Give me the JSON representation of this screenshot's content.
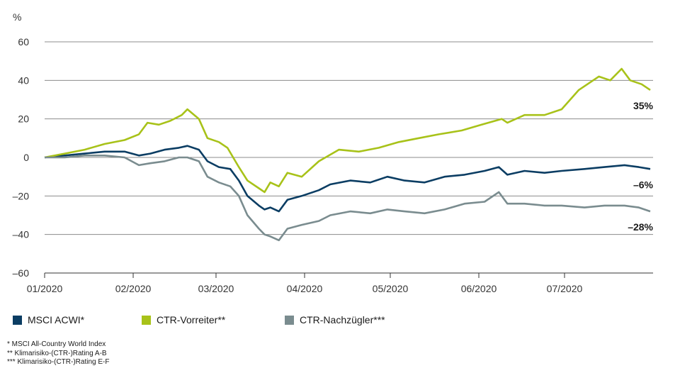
{
  "chart_data": {
    "type": "line",
    "unit_label": "%",
    "ylim": [
      -60,
      60
    ],
    "y_ticks": [
      60,
      40,
      20,
      0,
      -20,
      -40,
      -60
    ],
    "y_tick_labels": [
      "60",
      "40",
      "20",
      "0",
      "–20",
      "–40",
      "–60"
    ],
    "x_range": [
      "2020-01-01",
      "2020-08-01"
    ],
    "x_ticks": [
      {
        "date": "2020-01-01",
        "label": "01/2020"
      },
      {
        "date": "2020-02-01",
        "label": "02/2020"
      },
      {
        "date": "2020-03-01",
        "label": "03/2020"
      },
      {
        "date": "2020-04-01",
        "label": "04/2020"
      },
      {
        "date": "2020-05-01",
        "label": "05/2020"
      },
      {
        "date": "2020-06-01",
        "label": "06/2020"
      },
      {
        "date": "2020-07-01",
        "label": "07/2020"
      }
    ],
    "grid": true,
    "legend_position": "bottom-left",
    "series": [
      {
        "name": "MSCI ACWI*",
        "color": "#0b3d63",
        "end_label": "–6%",
        "points": [
          [
            "2020-01-01",
            0
          ],
          [
            "2020-01-08",
            1
          ],
          [
            "2020-01-15",
            2
          ],
          [
            "2020-01-22",
            3
          ],
          [
            "2020-01-29",
            3
          ],
          [
            "2020-02-03",
            1
          ],
          [
            "2020-02-07",
            2
          ],
          [
            "2020-02-12",
            4
          ],
          [
            "2020-02-17",
            5
          ],
          [
            "2020-02-20",
            6
          ],
          [
            "2020-02-24",
            4
          ],
          [
            "2020-02-27",
            -2
          ],
          [
            "2020-03-02",
            -5
          ],
          [
            "2020-03-06",
            -6
          ],
          [
            "2020-03-09",
            -12
          ],
          [
            "2020-03-12",
            -20
          ],
          [
            "2020-03-16",
            -25
          ],
          [
            "2020-03-18",
            -27
          ],
          [
            "2020-03-20",
            -26
          ],
          [
            "2020-03-23",
            -28
          ],
          [
            "2020-03-26",
            -22
          ],
          [
            "2020-03-31",
            -20
          ],
          [
            "2020-04-06",
            -17
          ],
          [
            "2020-04-10",
            -14
          ],
          [
            "2020-04-17",
            -12
          ],
          [
            "2020-04-24",
            -13
          ],
          [
            "2020-04-30",
            -10
          ],
          [
            "2020-05-06",
            -12
          ],
          [
            "2020-05-13",
            -13
          ],
          [
            "2020-05-20",
            -10
          ],
          [
            "2020-05-27",
            -9
          ],
          [
            "2020-06-03",
            -7
          ],
          [
            "2020-06-08",
            -5
          ],
          [
            "2020-06-11",
            -9
          ],
          [
            "2020-06-17",
            -7
          ],
          [
            "2020-06-24",
            -8
          ],
          [
            "2020-06-30",
            -7
          ],
          [
            "2020-07-08",
            -6
          ],
          [
            "2020-07-15",
            -5
          ],
          [
            "2020-07-22",
            -4
          ],
          [
            "2020-07-27",
            -5
          ],
          [
            "2020-07-31",
            -6
          ]
        ]
      },
      {
        "name": "CTR-Vorreiter**",
        "color": "#a8c219",
        "end_label": "35%",
        "points": [
          [
            "2020-01-01",
            0
          ],
          [
            "2020-01-08",
            2
          ],
          [
            "2020-01-15",
            4
          ],
          [
            "2020-01-22",
            7
          ],
          [
            "2020-01-29",
            9
          ],
          [
            "2020-02-03",
            12
          ],
          [
            "2020-02-06",
            18
          ],
          [
            "2020-02-10",
            17
          ],
          [
            "2020-02-14",
            19
          ],
          [
            "2020-02-18",
            22
          ],
          [
            "2020-02-20",
            25
          ],
          [
            "2020-02-24",
            20
          ],
          [
            "2020-02-27",
            10
          ],
          [
            "2020-03-02",
            8
          ],
          [
            "2020-03-05",
            5
          ],
          [
            "2020-03-09",
            -5
          ],
          [
            "2020-03-12",
            -12
          ],
          [
            "2020-03-16",
            -16
          ],
          [
            "2020-03-18",
            -18
          ],
          [
            "2020-03-20",
            -13
          ],
          [
            "2020-03-23",
            -15
          ],
          [
            "2020-03-26",
            -8
          ],
          [
            "2020-03-31",
            -10
          ],
          [
            "2020-04-06",
            -2
          ],
          [
            "2020-04-13",
            4
          ],
          [
            "2020-04-20",
            3
          ],
          [
            "2020-04-27",
            5
          ],
          [
            "2020-05-04",
            8
          ],
          [
            "2020-05-11",
            10
          ],
          [
            "2020-05-18",
            12
          ],
          [
            "2020-05-26",
            14
          ],
          [
            "2020-06-02",
            17
          ],
          [
            "2020-06-09",
            20
          ],
          [
            "2020-06-11",
            18
          ],
          [
            "2020-06-17",
            22
          ],
          [
            "2020-06-24",
            22
          ],
          [
            "2020-06-30",
            25
          ],
          [
            "2020-07-06",
            35
          ],
          [
            "2020-07-13",
            42
          ],
          [
            "2020-07-17",
            40
          ],
          [
            "2020-07-21",
            46
          ],
          [
            "2020-07-24",
            40
          ],
          [
            "2020-07-28",
            38
          ],
          [
            "2020-07-31",
            35
          ]
        ]
      },
      {
        "name": "CTR-Nachzügler***",
        "color": "#7a8c8f",
        "end_label": "–28%",
        "points": [
          [
            "2020-01-01",
            0
          ],
          [
            "2020-01-08",
            0
          ],
          [
            "2020-01-15",
            1
          ],
          [
            "2020-01-22",
            1
          ],
          [
            "2020-01-29",
            0
          ],
          [
            "2020-02-03",
            -4
          ],
          [
            "2020-02-07",
            -3
          ],
          [
            "2020-02-12",
            -2
          ],
          [
            "2020-02-17",
            0
          ],
          [
            "2020-02-20",
            0
          ],
          [
            "2020-02-24",
            -2
          ],
          [
            "2020-02-27",
            -10
          ],
          [
            "2020-03-02",
            -13
          ],
          [
            "2020-03-06",
            -15
          ],
          [
            "2020-03-09",
            -20
          ],
          [
            "2020-03-12",
            -30
          ],
          [
            "2020-03-16",
            -37
          ],
          [
            "2020-03-18",
            -40
          ],
          [
            "2020-03-20",
            -41
          ],
          [
            "2020-03-23",
            -43
          ],
          [
            "2020-03-26",
            -37
          ],
          [
            "2020-03-31",
            -35
          ],
          [
            "2020-04-06",
            -33
          ],
          [
            "2020-04-10",
            -30
          ],
          [
            "2020-04-17",
            -28
          ],
          [
            "2020-04-24",
            -29
          ],
          [
            "2020-04-30",
            -27
          ],
          [
            "2020-05-06",
            -28
          ],
          [
            "2020-05-13",
            -29
          ],
          [
            "2020-05-20",
            -27
          ],
          [
            "2020-05-27",
            -24
          ],
          [
            "2020-06-03",
            -23
          ],
          [
            "2020-06-08",
            -18
          ],
          [
            "2020-06-11",
            -24
          ],
          [
            "2020-06-17",
            -24
          ],
          [
            "2020-06-24",
            -25
          ],
          [
            "2020-06-30",
            -25
          ],
          [
            "2020-07-08",
            -26
          ],
          [
            "2020-07-15",
            -25
          ],
          [
            "2020-07-22",
            -25
          ],
          [
            "2020-07-27",
            -26
          ],
          [
            "2020-07-31",
            -28
          ]
        ]
      }
    ]
  },
  "footnotes": [
    "* MSCI All-Country World Index",
    "** Klimarisiko-(CTR-)Rating A-B",
    "*** Klimarisiko-(CTR-)Rating E-F"
  ]
}
